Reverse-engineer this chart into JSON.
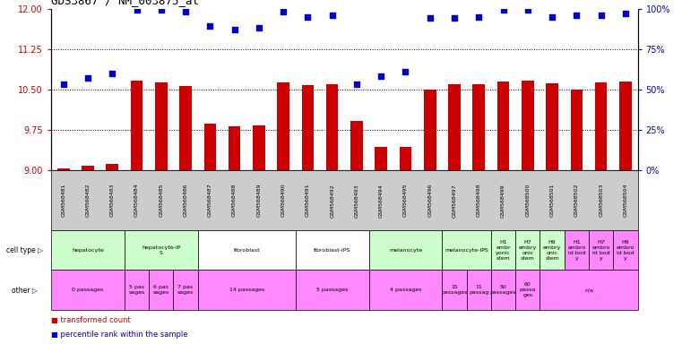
{
  "title": "GDS3867 / NM_003875_at",
  "samples": [
    "GSM568481",
    "GSM568482",
    "GSM568483",
    "GSM568484",
    "GSM568485",
    "GSM568486",
    "GSM568487",
    "GSM568488",
    "GSM568489",
    "GSM568490",
    "GSM568491",
    "GSM568492",
    "GSM568493",
    "GSM568494",
    "GSM568495",
    "GSM568496",
    "GSM568497",
    "GSM568498",
    "GSM568499",
    "GSM568500",
    "GSM568501",
    "GSM568502",
    "GSM568503",
    "GSM568504"
  ],
  "bar_values": [
    9.03,
    9.09,
    9.12,
    10.67,
    10.63,
    10.57,
    9.86,
    9.82,
    9.83,
    10.63,
    10.58,
    10.59,
    9.91,
    9.43,
    9.44,
    10.49,
    10.6,
    10.6,
    10.64,
    10.66,
    10.61,
    10.5,
    10.63,
    10.64
  ],
  "percentile_values": [
    53,
    57,
    60,
    99,
    99,
    98,
    89,
    87,
    88,
    98,
    95,
    96,
    53,
    58,
    61,
    94,
    94,
    95,
    99,
    99,
    95,
    96,
    96,
    97
  ],
  "ylim": [
    9,
    12
  ],
  "yticks": [
    9,
    9.75,
    10.5,
    11.25,
    12
  ],
  "y2lim": [
    0,
    100
  ],
  "y2ticks": [
    0,
    25,
    50,
    75,
    100
  ],
  "bar_color": "#cc0000",
  "dot_color": "#0000cc",
  "yaxis_color": "#cc0000",
  "y2axis_color": "#0000cc",
  "cell_type_groups": [
    {
      "label": "hepatocyte",
      "start": 0,
      "end": 2,
      "color": "#ccffcc"
    },
    {
      "label": "hepatocyte-iP\nS",
      "start": 3,
      "end": 5,
      "color": "#ccffcc"
    },
    {
      "label": "fibroblast",
      "start": 6,
      "end": 9,
      "color": "#ffffff"
    },
    {
      "label": "fibroblast-IPS",
      "start": 10,
      "end": 12,
      "color": "#ffffff"
    },
    {
      "label": "melanocyte",
      "start": 13,
      "end": 15,
      "color": "#ccffcc"
    },
    {
      "label": "melanocyte-IPS",
      "start": 16,
      "end": 17,
      "color": "#ccffcc"
    },
    {
      "label": "H1\nembr\nyonic\nstem",
      "start": 18,
      "end": 18,
      "color": "#ccffcc"
    },
    {
      "label": "H7\nembry\nonic\nstem",
      "start": 19,
      "end": 19,
      "color": "#ccffcc"
    },
    {
      "label": "H9\nembry\nonic\nstem",
      "start": 20,
      "end": 20,
      "color": "#ccffcc"
    },
    {
      "label": "H1\nembro\nid bod\ny",
      "start": 21,
      "end": 21,
      "color": "#ff88ff"
    },
    {
      "label": "H7\nembro\nid bod\ny",
      "start": 22,
      "end": 22,
      "color": "#ff88ff"
    },
    {
      "label": "H9\nembro\nid bod\ny",
      "start": 23,
      "end": 23,
      "color": "#ff88ff"
    }
  ],
  "other_groups": [
    {
      "label": "0 passages",
      "start": 0,
      "end": 2,
      "color": "#ff88ff"
    },
    {
      "label": "5 pas\nsages",
      "start": 3,
      "end": 3,
      "color": "#ff88ff"
    },
    {
      "label": "6 pas\nsages",
      "start": 4,
      "end": 4,
      "color": "#ff88ff"
    },
    {
      "label": "7 pas\nsages",
      "start": 5,
      "end": 5,
      "color": "#ff88ff"
    },
    {
      "label": "14 passages",
      "start": 6,
      "end": 9,
      "color": "#ff88ff"
    },
    {
      "label": "5 passages",
      "start": 10,
      "end": 12,
      "color": "#ff88ff"
    },
    {
      "label": "4 passages",
      "start": 13,
      "end": 15,
      "color": "#ff88ff"
    },
    {
      "label": "15\npassages",
      "start": 16,
      "end": 16,
      "color": "#ff88ff"
    },
    {
      "label": "11\npassag",
      "start": 17,
      "end": 17,
      "color": "#ff88ff"
    },
    {
      "label": "50\npassages",
      "start": 18,
      "end": 18,
      "color": "#ff88ff"
    },
    {
      "label": "60\npassa\nges",
      "start": 19,
      "end": 19,
      "color": "#ff88ff"
    },
    {
      "label": "n/a",
      "start": 20,
      "end": 23,
      "color": "#ff88ff"
    }
  ]
}
